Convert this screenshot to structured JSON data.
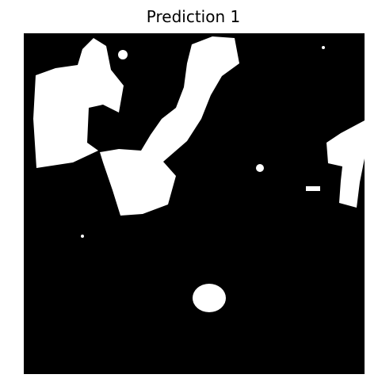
{
  "title": "Prediction 1"
}
